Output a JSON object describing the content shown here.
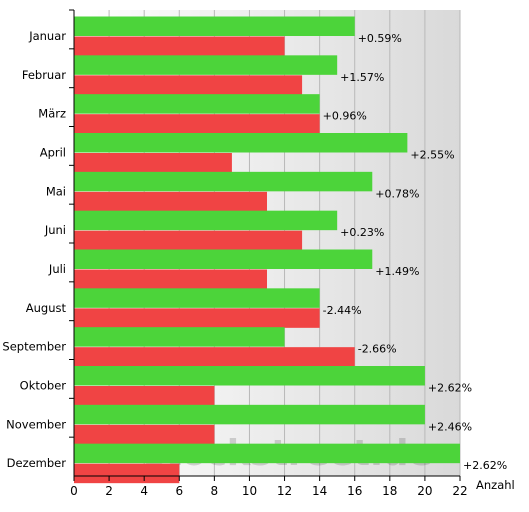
{
  "chart_data": {
    "type": "bar",
    "orientation": "horizontal",
    "categories": [
      "Januar",
      "Februar",
      "März",
      "April",
      "Mai",
      "Juni",
      "Juli",
      "August",
      "September",
      "Oktober",
      "November",
      "Dezember"
    ],
    "series": [
      {
        "color": "#4cd43a",
        "values": [
          16,
          15,
          14,
          19,
          17,
          15,
          17,
          14,
          12,
          20,
          20,
          22
        ]
      },
      {
        "color": "#f04444",
        "values": [
          12,
          13,
          14,
          9,
          11,
          13,
          11,
          14,
          16,
          8,
          8,
          6
        ]
      }
    ],
    "data_labels": [
      "+0.59%",
      "+1.57%",
      "+0.96%",
      "+2.55%",
      "+0.78%",
      "+0.23%",
      "+1.49%",
      "-2.44%",
      "-2.66%",
      "+2.62%",
      "+2.46%",
      "+2.62%"
    ],
    "xlabel": "Anzahl",
    "xlim": [
      0,
      22
    ],
    "xticks": [
      0,
      2,
      4,
      6,
      8,
      10,
      12,
      14,
      16,
      18,
      20,
      22
    ],
    "grid": true,
    "legend": "none"
  },
  "watermark": "stockstreet.de"
}
